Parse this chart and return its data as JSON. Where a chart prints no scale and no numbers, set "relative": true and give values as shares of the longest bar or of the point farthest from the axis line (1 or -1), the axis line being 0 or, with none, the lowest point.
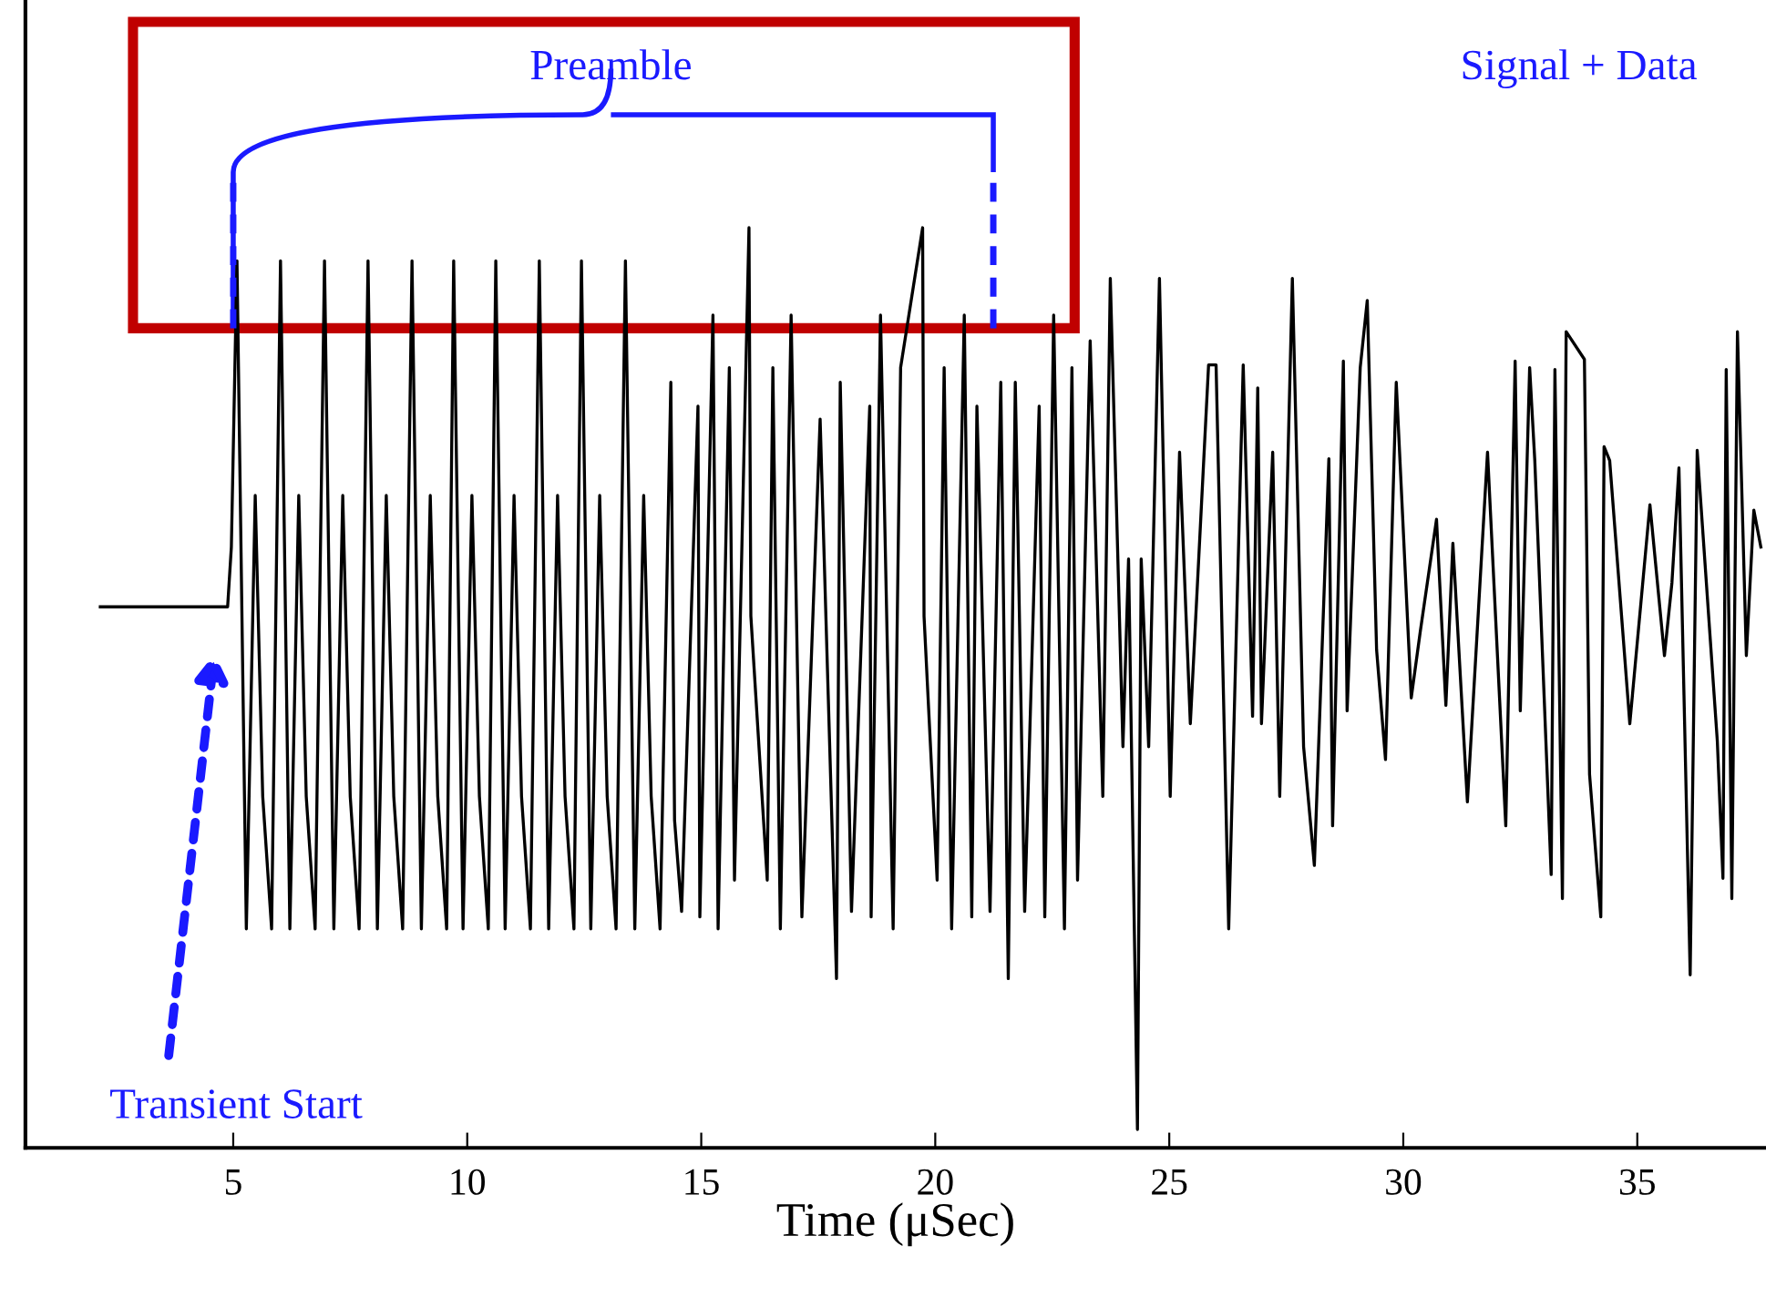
{
  "chart_data": {
    "type": "line",
    "relative": true,
    "xlabel": "Time (μSec)",
    "xlim": [
      0.56,
      37.75
    ],
    "xticks": [
      5,
      10,
      15,
      20,
      25,
      30,
      35
    ],
    "grid": false,
    "legend": false,
    "marker": "none",
    "line_style": "solid",
    "annotations": [
      "Preamble",
      "Signal + Data",
      "Transient Start"
    ],
    "series": [
      {
        "color": "#000000",
        "x": [
          2.16,
          4.88,
          4.96,
          5.08,
          5.28,
          5.47,
          5.63,
          5.82,
          6.01,
          6.21,
          6.4,
          6.56,
          6.75,
          6.95,
          7.15,
          7.34,
          7.5,
          7.69,
          7.88,
          8.08,
          8.27,
          8.43,
          8.62,
          8.82,
          9.02,
          9.21,
          9.37,
          9.56,
          9.71,
          9.91,
          10.1,
          10.26,
          10.45,
          10.61,
          10.81,
          11.0,
          11.16,
          11.35,
          11.54,
          11.74,
          11.93,
          12.09,
          12.28,
          12.44,
          12.64,
          12.83,
          12.99,
          13.18,
          13.38,
          13.58,
          13.77,
          13.93,
          14.12,
          14.35,
          14.43,
          14.58,
          14.93,
          14.97,
          15.25,
          15.36,
          15.6,
          15.71,
          16.02,
          16.06,
          16.41,
          16.53,
          16.69,
          16.92,
          17.15,
          17.54,
          17.89,
          17.97,
          18.21,
          18.6,
          18.63,
          18.83,
          19.1,
          19.26,
          19.73,
          19.76,
          20.04,
          20.19,
          20.35,
          20.62,
          20.78,
          20.89,
          21.17,
          21.4,
          21.56,
          21.71,
          21.91,
          22.22,
          22.34,
          22.53,
          22.76,
          22.92,
          23.04,
          23.31,
          23.58,
          23.74,
          24.01,
          24.13,
          24.32,
          24.4,
          24.56,
          24.79,
          25.02,
          25.22,
          25.45,
          25.84,
          26.0,
          26.27,
          26.58,
          26.78,
          26.89,
          26.97,
          27.21,
          27.36,
          27.63,
          27.87,
          28.1,
          28.41,
          28.49,
          28.72,
          28.8,
          29.08,
          29.23,
          29.43,
          29.62,
          29.85,
          30.17,
          30.36,
          30.71,
          30.91,
          31.06,
          31.37,
          31.8,
          32.19,
          32.39,
          32.5,
          32.7,
          32.81,
          33.16,
          33.24,
          33.4,
          33.48,
          33.87,
          33.98,
          34.22,
          34.29,
          34.41,
          34.84,
          35.27,
          35.58,
          35.74,
          35.89,
          36.13,
          36.28,
          36.71,
          36.83,
          36.9,
          37.02,
          37.14,
          37.33,
          37.49,
          37.64
        ],
        "values": [
          0.588,
          0.588,
          0.653,
          0.964,
          0.238,
          0.709,
          0.382,
          0.238,
          0.964,
          0.238,
          0.709,
          0.382,
          0.238,
          0.964,
          0.238,
          0.709,
          0.382,
          0.238,
          0.964,
          0.238,
          0.709,
          0.382,
          0.238,
          0.964,
          0.238,
          0.709,
          0.382,
          0.238,
          0.964,
          0.238,
          0.709,
          0.382,
          0.238,
          0.964,
          0.238,
          0.709,
          0.382,
          0.238,
          0.964,
          0.238,
          0.709,
          0.382,
          0.238,
          0.964,
          0.238,
          0.709,
          0.382,
          0.238,
          0.964,
          0.238,
          0.709,
          0.382,
          0.238,
          0.832,
          0.356,
          0.257,
          0.806,
          0.251,
          0.905,
          0.238,
          0.848,
          0.291,
          1,
          0.578,
          0.291,
          0.848,
          0.238,
          0.905,
          0.251,
          0.792,
          0.184,
          0.832,
          0.257,
          0.806,
          0.251,
          0.905,
          0.238,
          0.848,
          1,
          0.578,
          0.291,
          0.848,
          0.238,
          0.905,
          0.251,
          0.806,
          0.257,
          0.832,
          0.184,
          0.832,
          0.257,
          0.806,
          0.251,
          0.905,
          0.238,
          0.848,
          0.291,
          0.877,
          0.382,
          0.945,
          0.436,
          0.64,
          0.02,
          0.64,
          0.436,
          0.945,
          0.382,
          0.756,
          0.461,
          0.851,
          0.851,
          0.238,
          0.851,
          0.469,
          0.826,
          0.461,
          0.756,
          0.382,
          0.945,
          0.436,
          0.307,
          0.749,
          0.35,
          0.855,
          0.475,
          0.848,
          0.921,
          0.541,
          0.422,
          0.832,
          0.489,
          0.56,
          0.683,
          0.481,
          0.657,
          0.376,
          0.756,
          0.35,
          0.855,
          0.475,
          0.848,
          0.747,
          0.297,
          0.846,
          0.271,
          0.887,
          0.857,
          0.406,
          0.251,
          0.762,
          0.747,
          0.461,
          0.699,
          0.535,
          0.614,
          0.739,
          0.188,
          0.758,
          0.442,
          0.293,
          0.846,
          0.271,
          0.887,
          0.535,
          0.693,
          0.653
        ]
      }
    ]
  }
}
